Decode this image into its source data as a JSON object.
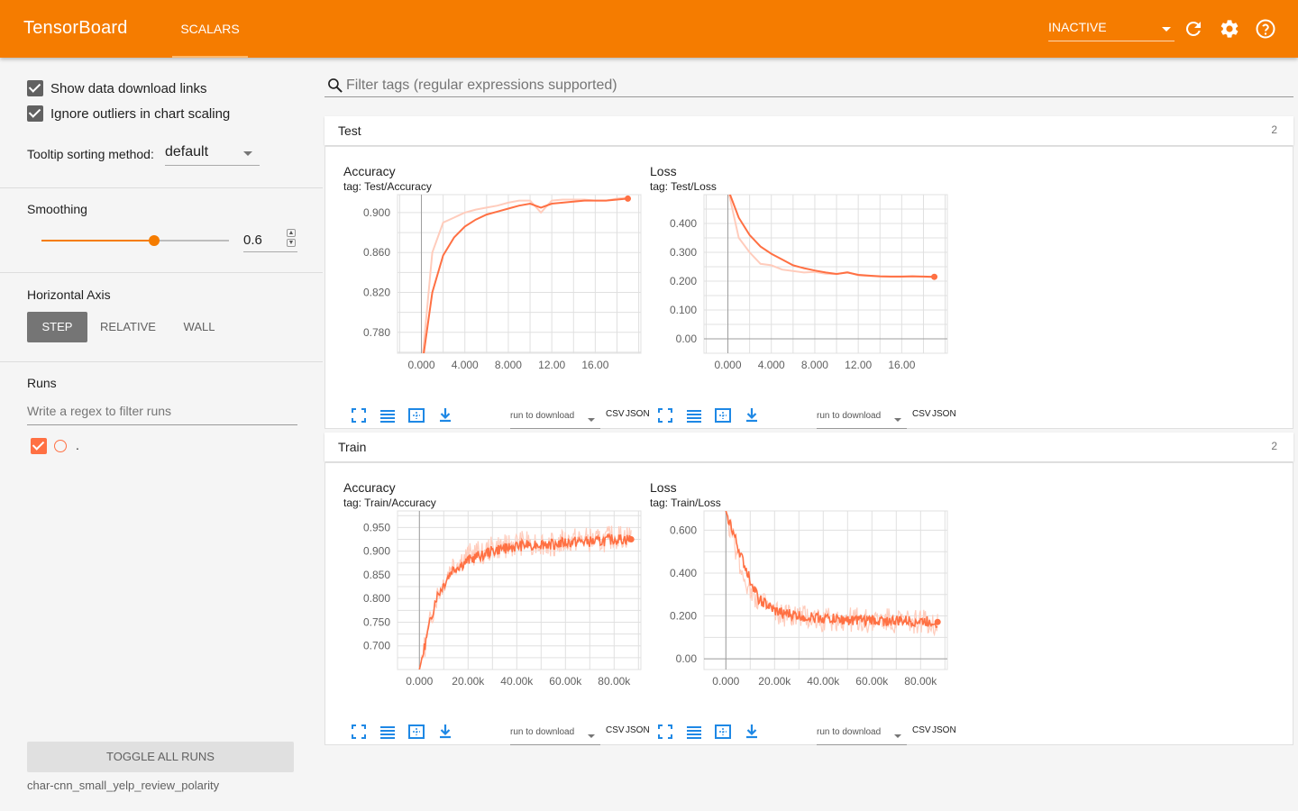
{
  "topbar": {
    "brand": "TensorBoard",
    "tab": "SCALARS",
    "status": "INACTIVE",
    "icons": [
      "refresh-icon",
      "settings-icon",
      "help-icon"
    ],
    "color": "#f57c00"
  },
  "sidebar": {
    "show_download_links": "Show data download links",
    "ignore_outliers": "Ignore outliers in chart scaling",
    "tooltip_label": "Tooltip sorting method:",
    "tooltip_value": "default",
    "smoothing_label": "Smoothing",
    "smoothing_value": "0.6",
    "smoothing_fraction": 0.6,
    "horizontal_axis_label": "Horizontal Axis",
    "axis_options": [
      "STEP",
      "RELATIVE",
      "WALL"
    ],
    "axis_selected": "STEP",
    "runs_label": "Runs",
    "runs_filter_placeholder": "Write a regex to filter runs",
    "run_name": ".",
    "toggle_all": "TOGGLE ALL RUNS",
    "dataset": "char-cnn_small_yelp_review_polarity"
  },
  "filter_placeholder": "Filter tags (regular expressions supported)",
  "groups": [
    {
      "name": "Test",
      "count": "2"
    },
    {
      "name": "Train",
      "count": "2"
    }
  ],
  "cards": {
    "test_acc": {
      "title": "Accuracy",
      "tag": "tag: Test/Accuracy"
    },
    "test_loss": {
      "title": "Loss",
      "tag": "tag: Test/Loss"
    },
    "train_acc": {
      "title": "Accuracy",
      "tag": "tag: Train/Accuracy"
    },
    "train_loss": {
      "title": "Loss",
      "tag": "tag: Train/Loss"
    }
  },
  "download": {
    "select": "run to download",
    "csv": "CSV",
    "json": "JSON"
  },
  "chart_data": [
    {
      "type": "line",
      "title": "Accuracy",
      "x_ticks": [
        "0.000",
        "4.000",
        "8.000",
        "12.00",
        "16.00"
      ],
      "y_ticks": [
        "0.780",
        "0.820",
        "0.860",
        "0.900"
      ],
      "xlim": [
        -2.2,
        20.2
      ],
      "ylim": [
        0.759,
        0.918
      ],
      "x": [
        0,
        1,
        2,
        3,
        4,
        5,
        6,
        7,
        8,
        9,
        10,
        11,
        12,
        13,
        14,
        15,
        16,
        17,
        18,
        19
      ],
      "series": [
        {
          "values": [
            0.742,
            0.82,
            0.857,
            0.875,
            0.886,
            0.893,
            0.898,
            0.901,
            0.904,
            0.907,
            0.909,
            0.905,
            0.909,
            0.91,
            0.911,
            0.912,
            0.912,
            0.912,
            0.913,
            0.914
          ],
          "style": "smoothed"
        },
        {
          "values": [
            0.742,
            0.86,
            0.89,
            0.895,
            0.9,
            0.903,
            0.905,
            0.907,
            0.91,
            0.912,
            0.912,
            0.9,
            0.912,
            0.913,
            0.913,
            0.913,
            0.912,
            0.912,
            0.914,
            0.915
          ],
          "style": "raw"
        }
      ],
      "grid": true
    },
    {
      "type": "line",
      "title": "Loss",
      "x_ticks": [
        "0.000",
        "4.000",
        "8.000",
        "12.00",
        "16.00"
      ],
      "y_ticks": [
        "0.00",
        "0.100",
        "0.200",
        "0.300",
        "0.400"
      ],
      "xlim": [
        -2.2,
        20.2
      ],
      "ylim": [
        -0.05,
        0.5
      ],
      "x": [
        0,
        1,
        2,
        3,
        4,
        5,
        6,
        7,
        8,
        9,
        10,
        11,
        12,
        13,
        14,
        15,
        16,
        17,
        18,
        19
      ],
      "series": [
        {
          "values": [
            0.52,
            0.42,
            0.36,
            0.32,
            0.295,
            0.275,
            0.255,
            0.245,
            0.237,
            0.23,
            0.225,
            0.23,
            0.222,
            0.219,
            0.217,
            0.216,
            0.216,
            0.217,
            0.216,
            0.215
          ],
          "style": "smoothed"
        },
        {
          "values": [
            0.52,
            0.35,
            0.3,
            0.26,
            0.255,
            0.24,
            0.235,
            0.23,
            0.232,
            0.226,
            0.224,
            0.232,
            0.22,
            0.218,
            0.216,
            0.215,
            0.215,
            0.217,
            0.215,
            0.214
          ],
          "style": "raw"
        }
      ],
      "grid": true
    },
    {
      "type": "line",
      "title": "Accuracy",
      "x_ticks": [
        "0.000",
        "20.00k",
        "40.00k",
        "60.00k",
        "80.00k"
      ],
      "y_ticks": [
        "0.700",
        "0.750",
        "0.800",
        "0.850",
        "0.900",
        "0.950"
      ],
      "xlim": [
        -9000,
        91000
      ],
      "ylim": [
        0.65,
        0.985
      ],
      "x_start": 0,
      "x_end": 87000,
      "series": [
        {
          "values": [
            0.65,
            0.8,
            0.86,
            0.88,
            0.895,
            0.905,
            0.91,
            0.915,
            0.915,
            0.918,
            0.92,
            0.92,
            0.925,
            0.925
          ],
          "style": "smoothed"
        },
        {
          "values": [
            0.65,
            0.8,
            0.87,
            0.89,
            0.9,
            0.91,
            0.915,
            0.92,
            0.915,
            0.92,
            0.925,
            0.92,
            0.93,
            0.93
          ],
          "style": "raw"
        }
      ],
      "grid": true
    },
    {
      "type": "line",
      "title": "Loss",
      "x_ticks": [
        "0.000",
        "20.00k",
        "40.00k",
        "60.00k",
        "80.00k"
      ],
      "y_ticks": [
        "0.00",
        "0.200",
        "0.400",
        "0.600"
      ],
      "xlim": [
        -9000,
        91000
      ],
      "ylim": [
        -0.05,
        0.69
      ],
      "x_start": 0,
      "x_end": 87000,
      "series": [
        {
          "values": [
            0.69,
            0.46,
            0.28,
            0.22,
            0.205,
            0.195,
            0.19,
            0.185,
            0.18,
            0.18,
            0.178,
            0.175,
            0.175,
            0.172
          ],
          "style": "smoothed"
        },
        {
          "values": [
            0.69,
            0.4,
            0.27,
            0.21,
            0.2,
            0.19,
            0.185,
            0.18,
            0.18,
            0.178,
            0.176,
            0.175,
            0.174,
            0.17
          ],
          "style": "raw"
        }
      ],
      "grid": true
    }
  ],
  "colors": {
    "series": "#ff7043",
    "raw": "#ffccbc",
    "grid": "#e0e0e0",
    "axis": "#9e9e9e"
  }
}
